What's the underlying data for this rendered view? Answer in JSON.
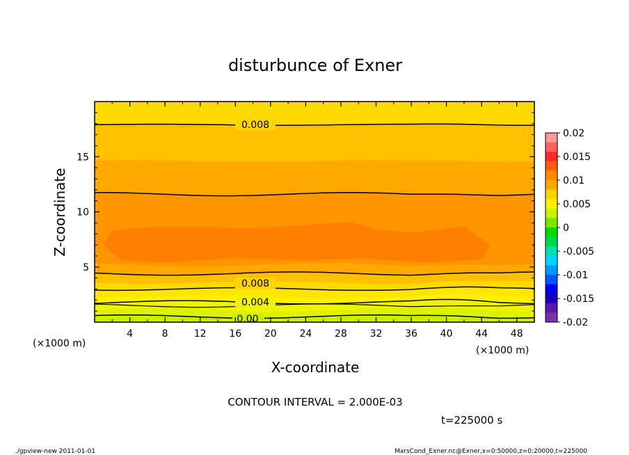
{
  "chart_data": {
    "type": "contour",
    "title": "disturbunce of Exner",
    "xlabel": "X-coordinate",
    "ylabel": "Z-coordinate",
    "x_unit_left": "(×1000 m)",
    "x_unit_right": "(×1000 m)",
    "xlim": [
      0,
      50
    ],
    "ylim": [
      0,
      20
    ],
    "x_ticks": [
      "4",
      "8",
      "12",
      "16",
      "20",
      "24",
      "28",
      "32",
      "36",
      "40",
      "44",
      "48"
    ],
    "y_ticks": [
      "5",
      "10",
      "15"
    ],
    "colorbar": {
      "labels": [
        "0.02",
        "0.015",
        "0.01",
        "0.005",
        "0",
        "-0.005",
        "-0.01",
        "-0.015",
        "-0.02"
      ],
      "colors": [
        "#ff9a9a",
        "#ff6060",
        "#ff2a2a",
        "#ff5a10",
        "#ff8a00",
        "#ffa800",
        "#ffd400",
        "#fff000",
        "#c8f000",
        "#7be600",
        "#00dc00",
        "#00d84a",
        "#00e0b0",
        "#00d4ff",
        "#0098ff",
        "#0055ff",
        "#0000ee",
        "#1a00bb",
        "#5a1aaa",
        "#7e2ea8"
      ]
    },
    "bands": [
      {
        "level": "0.001–0.002",
        "color": "#a8f000"
      },
      {
        "level": "0.002–0.003",
        "color": "#c8f000"
      },
      {
        "level": "0.003–0.004",
        "color": "#ddf200"
      },
      {
        "level": "0.004–0.005",
        "color": "#eef400"
      },
      {
        "level": "0.005–0.006",
        "color": "#fff000"
      },
      {
        "level": "0.006–0.007",
        "color": "#ffe600"
      },
      {
        "level": "0.007–0.008",
        "color": "#ffda00"
      },
      {
        "level": "0.008–0.009",
        "color": "#ffc000"
      },
      {
        "level": "0.009–0.010",
        "color": "#ffa800"
      },
      {
        "level": "0.010–0.011",
        "color": "#ff9500"
      },
      {
        "level": "0.011–0.012",
        "color": "#ff7f00"
      }
    ],
    "contour_labels": [
      "0.008",
      "0.008",
      "0.004",
      "0.00"
    ],
    "contour_interval_text": "CONTOUR INTERVAL = 2.000E-03",
    "time_text": "t=225000 s"
  },
  "footer": {
    "left": "./gpview-new  2011-01-01",
    "right": "MarsCond_Exner.nc@Exner,x=0:50000,z=0:20000,t=225000"
  }
}
